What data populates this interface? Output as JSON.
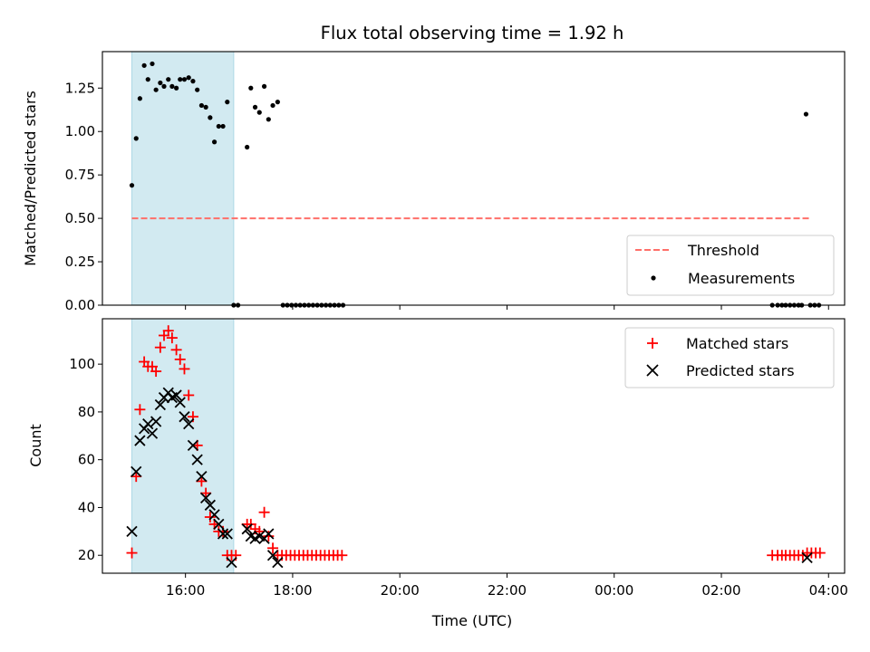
{
  "title": "Flux total observing time = 1.92 h",
  "colors": {
    "observing_span": "#add8e6",
    "threshold": "#ff6f69",
    "measurement": "#000000",
    "matched": "#ff0000",
    "predicted": "#000000"
  },
  "chart_data": [
    {
      "type": "scatter",
      "ylabel": "Matched/Predicted stars",
      "xlim_hours": [
        14.45,
        28.3
      ],
      "ylim": [
        0.0,
        1.46
      ],
      "y_ticks": [
        "0.00",
        "0.25",
        "0.50",
        "0.75",
        "1.00",
        "1.25"
      ],
      "observing_span_hours": [
        15.0,
        16.9
      ],
      "threshold": {
        "name": "Threshold",
        "value": 0.5,
        "x_range_hours": [
          15.0,
          27.65
        ],
        "style": "dashed"
      },
      "series": [
        {
          "name": "Measurements",
          "marker": "dot",
          "points": [
            [
              15.0,
              0.69
            ],
            [
              15.08,
              0.96
            ],
            [
              15.15,
              1.19
            ],
            [
              15.23,
              1.38
            ],
            [
              15.3,
              1.3
            ],
            [
              15.38,
              1.39
            ],
            [
              15.45,
              1.24
            ],
            [
              15.53,
              1.28
            ],
            [
              15.6,
              1.26
            ],
            [
              15.68,
              1.3
            ],
            [
              15.75,
              1.26
            ],
            [
              15.83,
              1.25
            ],
            [
              15.9,
              1.3
            ],
            [
              15.98,
              1.3
            ],
            [
              16.06,
              1.31
            ],
            [
              16.14,
              1.29
            ],
            [
              16.22,
              1.24
            ],
            [
              16.3,
              1.15
            ],
            [
              16.38,
              1.14
            ],
            [
              16.46,
              1.08
            ],
            [
              16.54,
              0.94
            ],
            [
              16.62,
              1.03
            ],
            [
              16.7,
              1.03
            ],
            [
              16.78,
              1.17
            ],
            [
              16.9,
              0.0
            ],
            [
              16.98,
              0.0
            ],
            [
              17.15,
              0.91
            ],
            [
              17.22,
              1.25
            ],
            [
              17.3,
              1.14
            ],
            [
              17.38,
              1.11
            ],
            [
              17.47,
              1.26
            ],
            [
              17.55,
              1.07
            ],
            [
              17.63,
              1.15
            ],
            [
              17.72,
              1.17
            ],
            [
              17.82,
              0.0
            ],
            [
              17.9,
              0.0
            ],
            [
              17.98,
              0.0
            ],
            [
              18.06,
              0.0
            ],
            [
              18.14,
              0.0
            ],
            [
              18.22,
              0.0
            ],
            [
              18.3,
              0.0
            ],
            [
              18.38,
              0.0
            ],
            [
              18.46,
              0.0
            ],
            [
              18.54,
              0.0
            ],
            [
              18.62,
              0.0
            ],
            [
              18.7,
              0.0
            ],
            [
              18.78,
              0.0
            ],
            [
              18.86,
              0.0
            ],
            [
              18.94,
              0.0
            ],
            [
              26.95,
              0.0
            ],
            [
              27.05,
              0.0
            ],
            [
              27.13,
              0.0
            ],
            [
              27.2,
              0.0
            ],
            [
              27.28,
              0.0
            ],
            [
              27.36,
              0.0
            ],
            [
              27.44,
              0.0
            ],
            [
              27.5,
              0.0
            ],
            [
              27.58,
              1.1
            ],
            [
              27.66,
              0.0
            ],
            [
              27.74,
              0.0
            ],
            [
              27.82,
              0.0
            ]
          ]
        }
      ],
      "legend": {
        "placement": "lower right",
        "entries": [
          "Threshold",
          "Measurements"
        ]
      }
    },
    {
      "type": "scatter",
      "xlabel": "Time (UTC)",
      "ylabel": "Count",
      "xlim_hours": [
        14.45,
        28.3
      ],
      "ylim": [
        12.5,
        119
      ],
      "y_ticks": [
        "20",
        "40",
        "60",
        "80",
        "100"
      ],
      "x_tick_hours": [
        16,
        18,
        20,
        22,
        24,
        26,
        28
      ],
      "x_tick_labels": [
        "16:00",
        "18:00",
        "20:00",
        "22:00",
        "00:00",
        "02:00",
        "04:00"
      ],
      "observing_span_hours": [
        15.0,
        16.9
      ],
      "series": [
        {
          "name": "Matched stars",
          "marker": "plus",
          "points": [
            [
              15.0,
              21
            ],
            [
              15.08,
              53
            ],
            [
              15.15,
              81
            ],
            [
              15.23,
              101
            ],
            [
              15.3,
              99
            ],
            [
              15.38,
              99
            ],
            [
              15.45,
              97
            ],
            [
              15.53,
              107
            ],
            [
              15.6,
              112
            ],
            [
              15.68,
              114
            ],
            [
              15.75,
              111
            ],
            [
              15.83,
              106
            ],
            [
              15.9,
              102
            ],
            [
              15.98,
              98
            ],
            [
              16.06,
              87
            ],
            [
              16.14,
              78
            ],
            [
              16.22,
              66
            ],
            [
              16.3,
              51
            ],
            [
              16.38,
              46
            ],
            [
              16.46,
              36
            ],
            [
              16.54,
              33
            ],
            [
              16.62,
              30
            ],
            [
              16.7,
              30
            ],
            [
              16.78,
              20
            ],
            [
              16.86,
              20
            ],
            [
              16.94,
              20
            ],
            [
              17.15,
              33
            ],
            [
              17.22,
              33
            ],
            [
              17.3,
              31
            ],
            [
              17.38,
              30
            ],
            [
              17.47,
              38
            ],
            [
              17.55,
              28
            ],
            [
              17.63,
              23
            ],
            [
              17.72,
              20
            ],
            [
              17.8,
              20
            ],
            [
              17.88,
              20
            ],
            [
              17.96,
              20
            ],
            [
              18.04,
              20
            ],
            [
              18.12,
              20
            ],
            [
              18.2,
              20
            ],
            [
              18.28,
              20
            ],
            [
              18.36,
              20
            ],
            [
              18.44,
              20
            ],
            [
              18.52,
              20
            ],
            [
              18.6,
              20
            ],
            [
              18.68,
              20
            ],
            [
              18.76,
              20
            ],
            [
              18.84,
              20
            ],
            [
              18.92,
              20
            ],
            [
              26.95,
              20
            ],
            [
              27.05,
              20
            ],
            [
              27.13,
              20
            ],
            [
              27.2,
              20
            ],
            [
              27.28,
              20
            ],
            [
              27.36,
              20
            ],
            [
              27.44,
              20
            ],
            [
              27.52,
              20
            ],
            [
              27.6,
              21
            ],
            [
              27.68,
              21
            ],
            [
              27.76,
              21
            ],
            [
              27.84,
              21
            ]
          ]
        },
        {
          "name": "Predicted stars",
          "marker": "x",
          "points": [
            [
              15.0,
              30
            ],
            [
              15.08,
              55
            ],
            [
              15.15,
              68
            ],
            [
              15.23,
              73
            ],
            [
              15.3,
              75
            ],
            [
              15.38,
              71
            ],
            [
              15.45,
              76
            ],
            [
              15.53,
              83
            ],
            [
              15.6,
              86
            ],
            [
              15.68,
              88
            ],
            [
              15.75,
              86
            ],
            [
              15.83,
              87
            ],
            [
              15.9,
              84
            ],
            [
              15.98,
              78
            ],
            [
              16.06,
              75
            ],
            [
              16.14,
              66
            ],
            [
              16.22,
              60
            ],
            [
              16.3,
              53
            ],
            [
              16.38,
              44
            ],
            [
              16.46,
              41
            ],
            [
              16.54,
              37
            ],
            [
              16.62,
              33
            ],
            [
              16.7,
              29
            ],
            [
              16.78,
              29
            ],
            [
              16.86,
              17
            ],
            [
              17.15,
              31
            ],
            [
              17.22,
              28
            ],
            [
              17.3,
              27
            ],
            [
              17.38,
              28
            ],
            [
              17.47,
              27
            ],
            [
              17.55,
              29
            ],
            [
              17.63,
              20
            ],
            [
              17.72,
              17
            ],
            [
              27.6,
              19
            ]
          ]
        }
      ],
      "legend": {
        "placement": "upper right",
        "entries": [
          "Matched stars",
          "Predicted stars"
        ]
      }
    }
  ]
}
